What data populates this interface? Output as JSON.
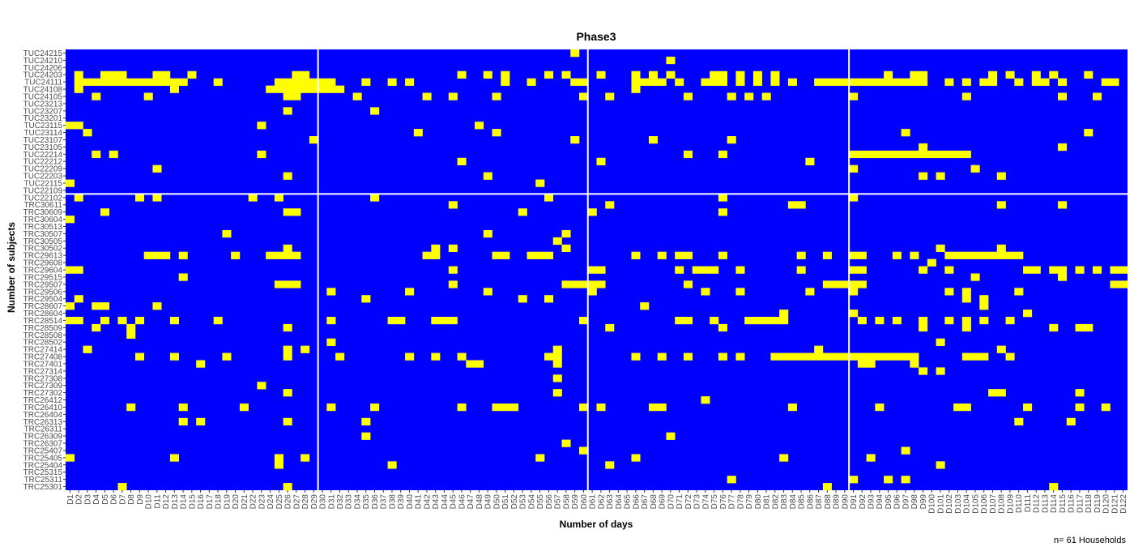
{
  "chart_data": {
    "type": "heatmap",
    "title": "Phase3",
    "xlabel": "Number of days",
    "ylabel": "Number of subjects",
    "caption": "n= 61 Households",
    "colors": {
      "background": "#0000ff",
      "present": "#ffff00",
      "separator": "#ffffff"
    },
    "n_days": 122,
    "day_prefix": "D",
    "vertical_separators_after_day": [
      29,
      60,
      90
    ],
    "horizontal_separator_between": [
      "TUC22109",
      "TUC22102"
    ],
    "subjects_top_to_bottom": [
      "TUC24215",
      "TUC24210",
      "TUC24206",
      "TUC24203",
      "TUC24111",
      "TUC24108",
      "TUC24105",
      "TUC23213",
      "TUC23207",
      "TUC23201",
      "TUC23115",
      "TUC23114",
      "TUC23107",
      "TUC23105",
      "TUC22214",
      "TUC22212",
      "TUC22209",
      "TUC22203",
      "TUC22115",
      "TUC22109",
      "TUC22102",
      "TRC30611",
      "TRC30609",
      "TRC30604",
      "TRC30513",
      "TRC30507",
      "TRC30505",
      "TRC30502",
      "TRC29613",
      "TRC29608",
      "TRC29604",
      "TRC29515",
      "TRC29507",
      "TRC29506",
      "TRC29504",
      "TRC28607",
      "TRC28604",
      "TRC28514",
      "TRC28509",
      "TRC28508",
      "TRC28502",
      "TRC27414",
      "TRC27408",
      "TRC27401",
      "TRC27314",
      "TRC27308",
      "TRC27309",
      "TRC27302",
      "TRC26412",
      "TRC26410",
      "TRC26404",
      "TRC26313",
      "TRC26311",
      "TRC26309",
      "TRC26307",
      "TRC25407",
      "TRC25405",
      "TRC25404",
      "TRC25315",
      "TRC25311",
      "TRC25301"
    ],
    "cells": {
      "TUC24215": [
        [
          59,
          59
        ]
      ],
      "TUC24210": [
        [
          70,
          70
        ]
      ],
      "TUC24206": [],
      "TUC24203": [
        [
          2,
          2
        ],
        [
          5,
          7
        ],
        [
          11,
          12
        ],
        [
          15,
          15
        ],
        [
          27,
          28
        ],
        [
          46,
          46
        ],
        [
          49,
          49
        ],
        [
          51,
          51
        ],
        [
          56,
          56
        ],
        [
          58,
          58
        ],
        [
          62,
          62
        ],
        [
          66,
          66
        ],
        [
          68,
          68
        ],
        [
          70,
          70
        ],
        [
          75,
          76
        ],
        [
          78,
          78
        ],
        [
          80,
          80
        ],
        [
          82,
          82
        ],
        [
          95,
          95
        ],
        [
          98,
          99
        ],
        [
          107,
          107
        ],
        [
          109,
          109
        ],
        [
          112,
          112
        ],
        [
          114,
          114
        ],
        [
          118,
          118
        ]
      ],
      "TUC24111": [
        [
          2,
          14
        ],
        [
          18,
          18
        ],
        [
          25,
          27
        ],
        [
          28,
          31
        ],
        [
          35,
          35
        ],
        [
          38,
          38
        ],
        [
          40,
          40
        ],
        [
          51,
          51
        ],
        [
          54,
          54
        ],
        [
          59,
          60
        ],
        [
          66,
          69
        ],
        [
          71,
          71
        ],
        [
          74,
          76
        ],
        [
          78,
          78
        ],
        [
          80,
          80
        ],
        [
          82,
          82
        ],
        [
          84,
          84
        ],
        [
          87,
          90
        ],
        [
          91,
          99
        ],
        [
          102,
          102
        ],
        [
          104,
          104
        ],
        [
          106,
          107
        ],
        [
          110,
          110
        ],
        [
          112,
          113
        ],
        [
          115,
          115
        ],
        [
          120,
          121
        ]
      ],
      "TUC24108": [
        [
          2,
          2
        ],
        [
          13,
          13
        ],
        [
          24,
          31
        ],
        [
          32,
          32
        ],
        [
          66,
          66
        ]
      ],
      "TUC24105": [
        [
          4,
          4
        ],
        [
          10,
          10
        ],
        [
          26,
          27
        ],
        [
          34,
          34
        ],
        [
          42,
          42
        ],
        [
          45,
          45
        ],
        [
          50,
          50
        ],
        [
          60,
          60
        ],
        [
          63,
          63
        ],
        [
          72,
          72
        ],
        [
          77,
          77
        ],
        [
          79,
          79
        ],
        [
          81,
          81
        ],
        [
          91,
          91
        ],
        [
          104,
          104
        ],
        [
          115,
          115
        ],
        [
          119,
          119
        ]
      ],
      "TUC23213": [],
      "TUC23207": [
        [
          26,
          26
        ],
        [
          36,
          36
        ]
      ],
      "TUC23201": [],
      "TUC23115": [
        [
          1,
          2
        ],
        [
          23,
          23
        ],
        [
          48,
          48
        ]
      ],
      "TUC23114": [
        [
          3,
          3
        ],
        [
          41,
          41
        ],
        [
          50,
          50
        ],
        [
          97,
          97
        ],
        [
          118,
          118
        ]
      ],
      "TUC23107": [
        [
          29,
          29
        ],
        [
          59,
          59
        ],
        [
          68,
          68
        ],
        [
          77,
          77
        ]
      ],
      "TUC23105": [
        [
          99,
          99
        ],
        [
          115,
          115
        ]
      ],
      "TUC22214": [
        [
          4,
          4
        ],
        [
          6,
          6
        ],
        [
          23,
          23
        ],
        [
          72,
          72
        ],
        [
          76,
          76
        ],
        [
          91,
          104
        ]
      ],
      "TUC22212": [
        [
          46,
          46
        ],
        [
          62,
          62
        ],
        [
          86,
          86
        ]
      ],
      "TUC22209": [
        [
          11,
          11
        ],
        [
          91,
          91
        ],
        [
          105,
          105
        ]
      ],
      "TUC22203": [
        [
          26,
          26
        ],
        [
          49,
          49
        ],
        [
          99,
          99
        ],
        [
          101,
          101
        ],
        [
          108,
          108
        ]
      ],
      "TUC22115": [
        [
          1,
          1
        ],
        [
          55,
          55
        ]
      ],
      "TUC22109": [],
      "TUC22102": [
        [
          2,
          2
        ],
        [
          9,
          9
        ],
        [
          11,
          11
        ],
        [
          22,
          22
        ],
        [
          25,
          25
        ],
        [
          36,
          36
        ],
        [
          56,
          56
        ],
        [
          76,
          76
        ],
        [
          91,
          91
        ]
      ],
      "TRC30611": [
        [
          45,
          45
        ],
        [
          63,
          63
        ],
        [
          84,
          85
        ],
        [
          108,
          108
        ],
        [
          115,
          115
        ]
      ],
      "TRC30609": [
        [
          5,
          5
        ],
        [
          26,
          27
        ],
        [
          53,
          53
        ],
        [
          61,
          61
        ],
        [
          76,
          76
        ]
      ],
      "TRC30604": [
        [
          1,
          1
        ]
      ],
      "TRC30513": [],
      "TRC30507": [
        [
          19,
          19
        ],
        [
          49,
          49
        ],
        [
          58,
          58
        ]
      ],
      "TRC30505": [
        [
          57,
          57
        ]
      ],
      "TRC30502": [
        [
          26,
          26
        ],
        [
          43,
          43
        ],
        [
          45,
          45
        ],
        [
          58,
          58
        ],
        [
          101,
          101
        ],
        [
          108,
          108
        ]
      ],
      "TRC29613": [
        [
          10,
          12
        ],
        [
          14,
          14
        ],
        [
          20,
          20
        ],
        [
          24,
          27
        ],
        [
          42,
          43
        ],
        [
          50,
          51
        ],
        [
          54,
          56
        ],
        [
          66,
          66
        ],
        [
          69,
          69
        ],
        [
          71,
          72
        ],
        [
          76,
          76
        ],
        [
          85,
          85
        ],
        [
          88,
          88
        ],
        [
          91,
          92
        ],
        [
          96,
          96
        ],
        [
          98,
          98
        ],
        [
          102,
          110
        ]
      ],
      "TRC29608": [
        [
          100,
          100
        ]
      ],
      "TRC29604": [
        [
          1,
          2
        ],
        [
          45,
          45
        ],
        [
          61,
          62
        ],
        [
          71,
          71
        ],
        [
          73,
          75
        ],
        [
          78,
          78
        ],
        [
          85,
          85
        ],
        [
          91,
          92
        ],
        [
          99,
          99
        ],
        [
          102,
          102
        ],
        [
          111,
          112
        ],
        [
          114,
          115
        ],
        [
          117,
          117
        ],
        [
          119,
          119
        ],
        [
          121,
          122
        ]
      ],
      "TRC29515": [
        [
          14,
          14
        ],
        [
          105,
          105
        ],
        [
          115,
          115
        ]
      ],
      "TRC29507": [
        [
          25,
          27
        ],
        [
          45,
          45
        ],
        [
          58,
          61
        ],
        [
          62,
          62
        ],
        [
          72,
          72
        ],
        [
          88,
          90
        ],
        [
          91,
          92
        ],
        [
          121,
          122
        ]
      ],
      "TRC29506": [
        [
          31,
          31
        ],
        [
          40,
          40
        ],
        [
          49,
          49
        ],
        [
          61,
          61
        ],
        [
          74,
          74
        ],
        [
          78,
          78
        ],
        [
          86,
          86
        ],
        [
          91,
          91
        ],
        [
          102,
          102
        ],
        [
          104,
          104
        ],
        [
          110,
          110
        ]
      ],
      "TRC29504": [
        [
          2,
          2
        ],
        [
          35,
          35
        ],
        [
          53,
          53
        ],
        [
          56,
          56
        ],
        [
          104,
          104
        ],
        [
          106,
          106
        ]
      ],
      "TRC28607": [
        [
          1,
          1
        ],
        [
          4,
          5
        ],
        [
          11,
          11
        ],
        [
          67,
          67
        ],
        [
          106,
          106
        ]
      ],
      "TRC28604": [
        [
          83,
          83
        ],
        [
          91,
          91
        ],
        [
          111,
          111
        ]
      ],
      "TRC28514": [
        [
          1,
          2
        ],
        [
          5,
          5
        ],
        [
          7,
          7
        ],
        [
          9,
          9
        ],
        [
          13,
          13
        ],
        [
          18,
          18
        ],
        [
          31,
          31
        ],
        [
          38,
          39
        ],
        [
          43,
          45
        ],
        [
          60,
          60
        ],
        [
          71,
          72
        ],
        [
          75,
          75
        ],
        [
          79,
          83
        ],
        [
          92,
          92
        ],
        [
          94,
          94
        ],
        [
          96,
          96
        ],
        [
          99,
          99
        ],
        [
          102,
          102
        ],
        [
          104,
          104
        ],
        [
          106,
          106
        ],
        [
          109,
          109
        ]
      ],
      "TRC28509": [
        [
          4,
          4
        ],
        [
          8,
          8
        ],
        [
          26,
          26
        ],
        [
          63,
          63
        ],
        [
          76,
          76
        ],
        [
          99,
          99
        ],
        [
          104,
          104
        ],
        [
          114,
          114
        ],
        [
          117,
          118
        ]
      ],
      "TRC28508": [
        [
          8,
          8
        ]
      ],
      "TRC28502": [
        [
          31,
          31
        ],
        [
          101,
          101
        ]
      ],
      "TRC27414": [
        [
          3,
          3
        ],
        [
          26,
          26
        ],
        [
          28,
          28
        ],
        [
          57,
          57
        ],
        [
          87,
          87
        ],
        [
          108,
          108
        ]
      ],
      "TRC27408": [
        [
          9,
          9
        ],
        [
          13,
          13
        ],
        [
          19,
          19
        ],
        [
          26,
          26
        ],
        [
          32,
          32
        ],
        [
          40,
          40
        ],
        [
          43,
          43
        ],
        [
          46,
          46
        ],
        [
          56,
          57
        ],
        [
          66,
          66
        ],
        [
          69,
          69
        ],
        [
          72,
          72
        ],
        [
          76,
          76
        ],
        [
          78,
          78
        ],
        [
          82,
          90
        ],
        [
          91,
          98
        ],
        [
          104,
          106
        ],
        [
          109,
          109
        ]
      ],
      "TRC27401": [
        [
          16,
          16
        ],
        [
          47,
          48
        ],
        [
          57,
          57
        ],
        [
          92,
          93
        ],
        [
          98,
          98
        ]
      ],
      "TRC27314": [
        [
          99,
          99
        ],
        [
          101,
          101
        ]
      ],
      "TRC27308": [
        [
          57,
          57
        ]
      ],
      "TRC27309": [
        [
          23,
          23
        ]
      ],
      "TRC27302": [
        [
          26,
          26
        ],
        [
          57,
          57
        ],
        [
          107,
          108
        ],
        [
          117,
          117
        ]
      ],
      "TRC26412": [
        [
          74,
          74
        ]
      ],
      "TRC26410": [
        [
          8,
          8
        ],
        [
          14,
          14
        ],
        [
          21,
          21
        ],
        [
          31,
          31
        ],
        [
          36,
          36
        ],
        [
          46,
          46
        ],
        [
          50,
          52
        ],
        [
          60,
          60
        ],
        [
          62,
          62
        ],
        [
          68,
          69
        ],
        [
          84,
          84
        ],
        [
          94,
          94
        ],
        [
          103,
          104
        ],
        [
          111,
          111
        ],
        [
          117,
          117
        ],
        [
          120,
          120
        ]
      ],
      "TRC26404": [],
      "TRC26313": [
        [
          14,
          14
        ],
        [
          16,
          16
        ],
        [
          26,
          26
        ],
        [
          35,
          35
        ],
        [
          110,
          110
        ],
        [
          116,
          116
        ]
      ],
      "TRC26311": [],
      "TRC26309": [
        [
          35,
          35
        ],
        [
          70,
          70
        ]
      ],
      "TRC26307": [
        [
          58,
          58
        ]
      ],
      "TRC25407": [
        [
          60,
          60
        ],
        [
          97,
          97
        ]
      ],
      "TRC25405": [
        [
          1,
          1
        ],
        [
          13,
          13
        ],
        [
          25,
          25
        ],
        [
          28,
          28
        ],
        [
          55,
          55
        ],
        [
          66,
          66
        ],
        [
          83,
          83
        ],
        [
          93,
          93
        ]
      ],
      "TRC25404": [
        [
          25,
          25
        ],
        [
          38,
          38
        ],
        [
          63,
          63
        ],
        [
          101,
          101
        ]
      ],
      "TRC25315": [],
      "TRC25311": [
        [
          77,
          77
        ],
        [
          91,
          91
        ],
        [
          95,
          95
        ],
        [
          97,
          97
        ]
      ],
      "TRC25301": [
        [
          7,
          7
        ],
        [
          26,
          26
        ],
        [
          88,
          88
        ],
        [
          114,
          114
        ]
      ]
    }
  }
}
